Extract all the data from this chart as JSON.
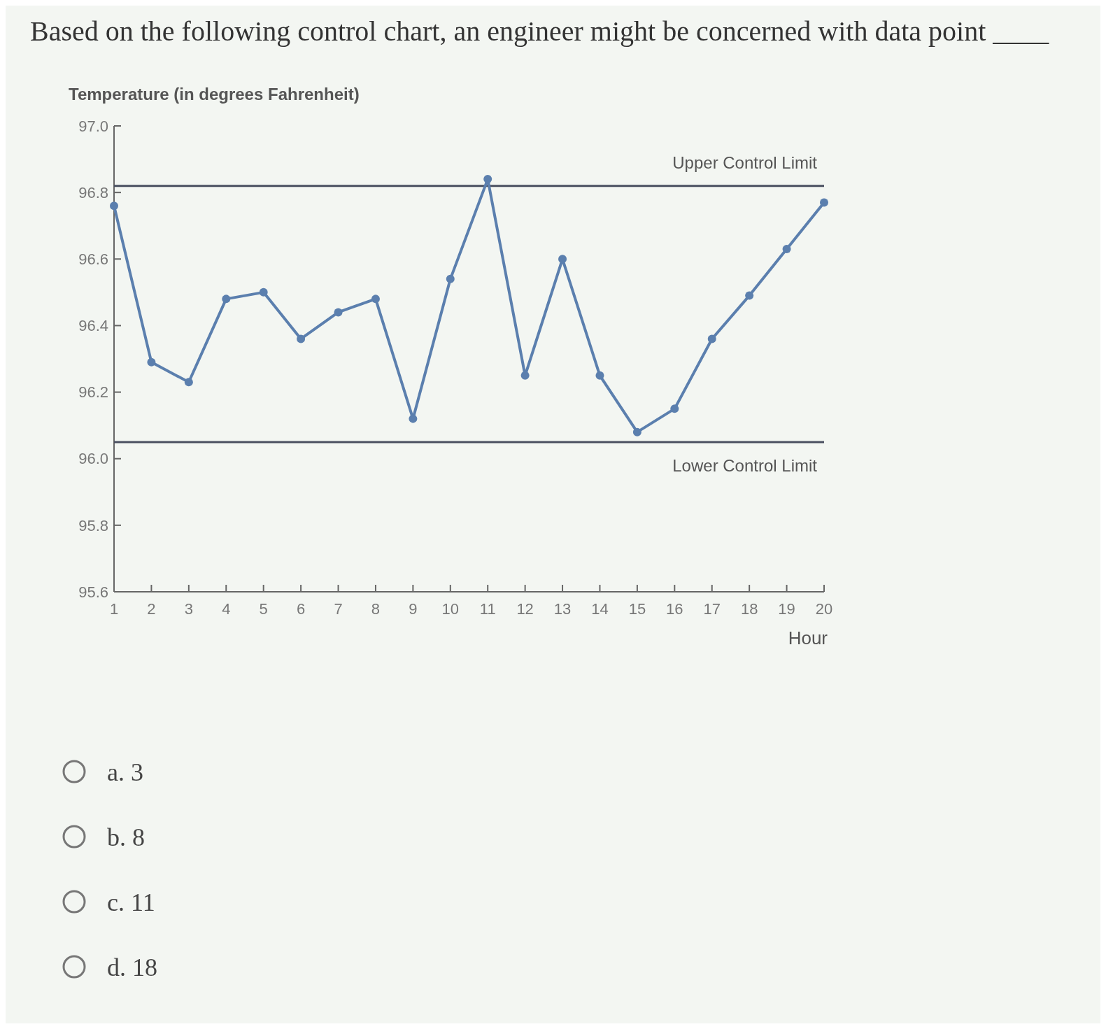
{
  "chart_data": {
    "type": "line",
    "title": "Based on the following control chart, an engineer might be concerned with data point ____",
    "ylabel": "Temperature (in degrees Fahrenheit)",
    "xlabel": "Hour",
    "x": [
      1,
      2,
      3,
      4,
      5,
      6,
      7,
      8,
      9,
      10,
      11,
      12,
      13,
      14,
      15,
      16,
      17,
      18,
      19,
      20
    ],
    "series": [
      {
        "color": "#5b7fae",
        "values": [
          96.76,
          96.29,
          96.23,
          96.48,
          96.5,
          96.36,
          96.44,
          96.48,
          96.12,
          96.54,
          96.84,
          96.25,
          96.6,
          96.25,
          96.08,
          96.15,
          96.36,
          96.49,
          96.63,
          96.77
        ]
      }
    ],
    "xlim": [
      1,
      20
    ],
    "xticks": [
      1,
      2,
      3,
      4,
      5,
      6,
      7,
      8,
      9,
      10,
      11,
      12,
      13,
      14,
      15,
      16,
      17,
      18,
      19,
      20
    ],
    "ylim": [
      95.6,
      97.0
    ],
    "yticks": [
      {
        "value": 95.6,
        "label": "95.6"
      },
      {
        "value": 95.8,
        "label": "95.8"
      },
      {
        "value": 96.0,
        "label": "96.0"
      },
      {
        "value": 96.2,
        "label": "96.2"
      },
      {
        "value": 96.4,
        "label": "96.4"
      },
      {
        "value": 96.6,
        "label": "96.6"
      },
      {
        "value": 96.8,
        "label": "96.8"
      },
      {
        "value": 97.0,
        "label": "97.0"
      }
    ],
    "ref_lines": [
      {
        "axis": "y",
        "value": 96.82,
        "label": "Upper Control Limit",
        "color": "#4a5060"
      },
      {
        "axis": "y",
        "value": 96.05,
        "label": "Lower Control Limit",
        "color": "#4a5060"
      }
    ],
    "marker": "circle",
    "line_style": "solid",
    "grid": false,
    "annotations": [
      "a. 3",
      "b. 8",
      "c. 11",
      "d. 18"
    ]
  }
}
